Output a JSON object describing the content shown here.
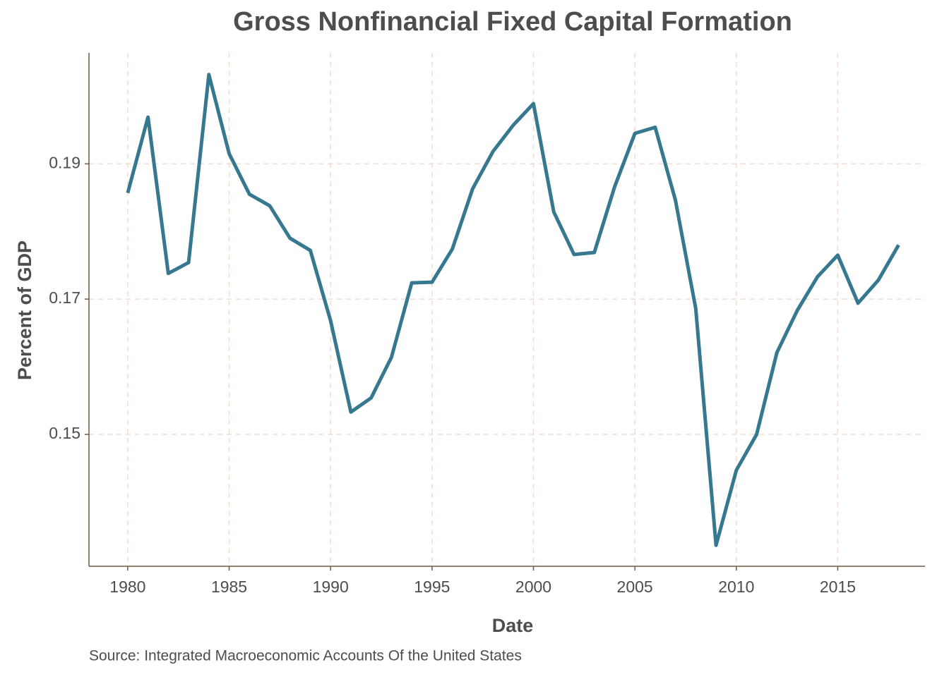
{
  "chart_data": {
    "type": "line",
    "title": "Gross Nonfinancial Fixed Capital Formation",
    "x_label": "Date",
    "y_label": "Percent of GDP",
    "source": "Source: Integrated Macroeconomic Accounts Of the United States",
    "x": [
      1980,
      1981,
      1982,
      1983,
      1984,
      1985,
      1986,
      1987,
      1988,
      1989,
      1990,
      1991,
      1992,
      1993,
      1994,
      1995,
      1996,
      1997,
      1998,
      1999,
      2000,
      2001,
      2002,
      2003,
      2004,
      2005,
      2006,
      2007,
      2008,
      2009,
      2010,
      2011,
      2012,
      2013,
      2014,
      2015,
      2016,
      2017,
      2018
    ],
    "series": [
      {
        "color": "#35788f",
        "values": [
          0.1857,
          0.1969,
          0.1738,
          0.1754,
          0.2032,
          0.1915,
          0.1855,
          0.1838,
          0.179,
          0.1772,
          0.1668,
          0.1533,
          0.1554,
          0.1614,
          0.1724,
          0.1725,
          0.1774,
          0.1863,
          0.1918,
          0.1957,
          0.1989,
          0.1829,
          0.1766,
          0.1769,
          0.1866,
          0.1945,
          0.1954,
          0.1846,
          0.1686,
          0.1336,
          0.1447,
          0.15,
          0.1621,
          0.1683,
          0.1733,
          0.1765,
          0.1694,
          0.1728,
          0.178
        ]
      }
    ],
    "xlim": [
      1978.09,
      2019.3
    ],
    "ylim": [
      0.1305,
      0.2064
    ],
    "xticks": [
      1980,
      1985,
      1990,
      1995,
      2000,
      2005,
      2010,
      2015
    ],
    "yticks": [
      0.15,
      0.17,
      0.19
    ],
    "grid": true
  }
}
